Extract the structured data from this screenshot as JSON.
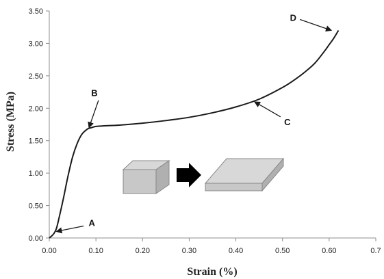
{
  "chart_data": {
    "type": "line",
    "xlabel": "Strain (%)",
    "ylabel": "Stress (MPa)",
    "xlim": [
      0,
      0.7
    ],
    "ylim": [
      0,
      3.5
    ],
    "x_ticks": [
      "0.00",
      "0.10",
      "0.20",
      "0.30",
      "0.40",
      "0.50",
      "0.60",
      "0.7"
    ],
    "y_ticks": [
      "0.00",
      "0.50",
      "1.00",
      "1.50",
      "2.00",
      "2.50",
      "3.00",
      "3.50"
    ],
    "grid": false,
    "series": [
      {
        "x": [
          0.0,
          0.005,
          0.01,
          0.015,
          0.02,
          0.03,
          0.04,
          0.05,
          0.06,
          0.07,
          0.08,
          0.085,
          0.09,
          0.1,
          0.12,
          0.15,
          0.2,
          0.25,
          0.3,
          0.35,
          0.4,
          0.45,
          0.5,
          0.53,
          0.55,
          0.57,
          0.59,
          0.6,
          0.61,
          0.62
        ],
        "y": [
          0.0,
          0.03,
          0.07,
          0.14,
          0.28,
          0.6,
          0.95,
          1.25,
          1.46,
          1.6,
          1.67,
          1.69,
          1.7,
          1.72,
          1.73,
          1.74,
          1.77,
          1.81,
          1.86,
          1.93,
          2.02,
          2.14,
          2.32,
          2.46,
          2.57,
          2.7,
          2.88,
          2.98,
          3.08,
          3.2
        ]
      }
    ],
    "annotations": [
      {
        "label": "A",
        "point": [
          0.015,
          0.1
        ]
      },
      {
        "label": "B",
        "point": [
          0.085,
          1.7
        ]
      },
      {
        "label": "C",
        "point": [
          0.44,
          2.1
        ]
      },
      {
        "label": "D",
        "point": [
          0.605,
          3.2
        ]
      }
    ],
    "colors": {
      "line": "#1a1a1a",
      "axis": "#8c8c8c",
      "block_fill": "#c8c8c8",
      "block_top": "#d8d8d8",
      "block_side": "#b0b0b0",
      "arrow": "#000000"
    },
    "inset_icons": [
      "cube-block-icon",
      "compression-arrow-icon",
      "flattened-slab-icon"
    ]
  }
}
